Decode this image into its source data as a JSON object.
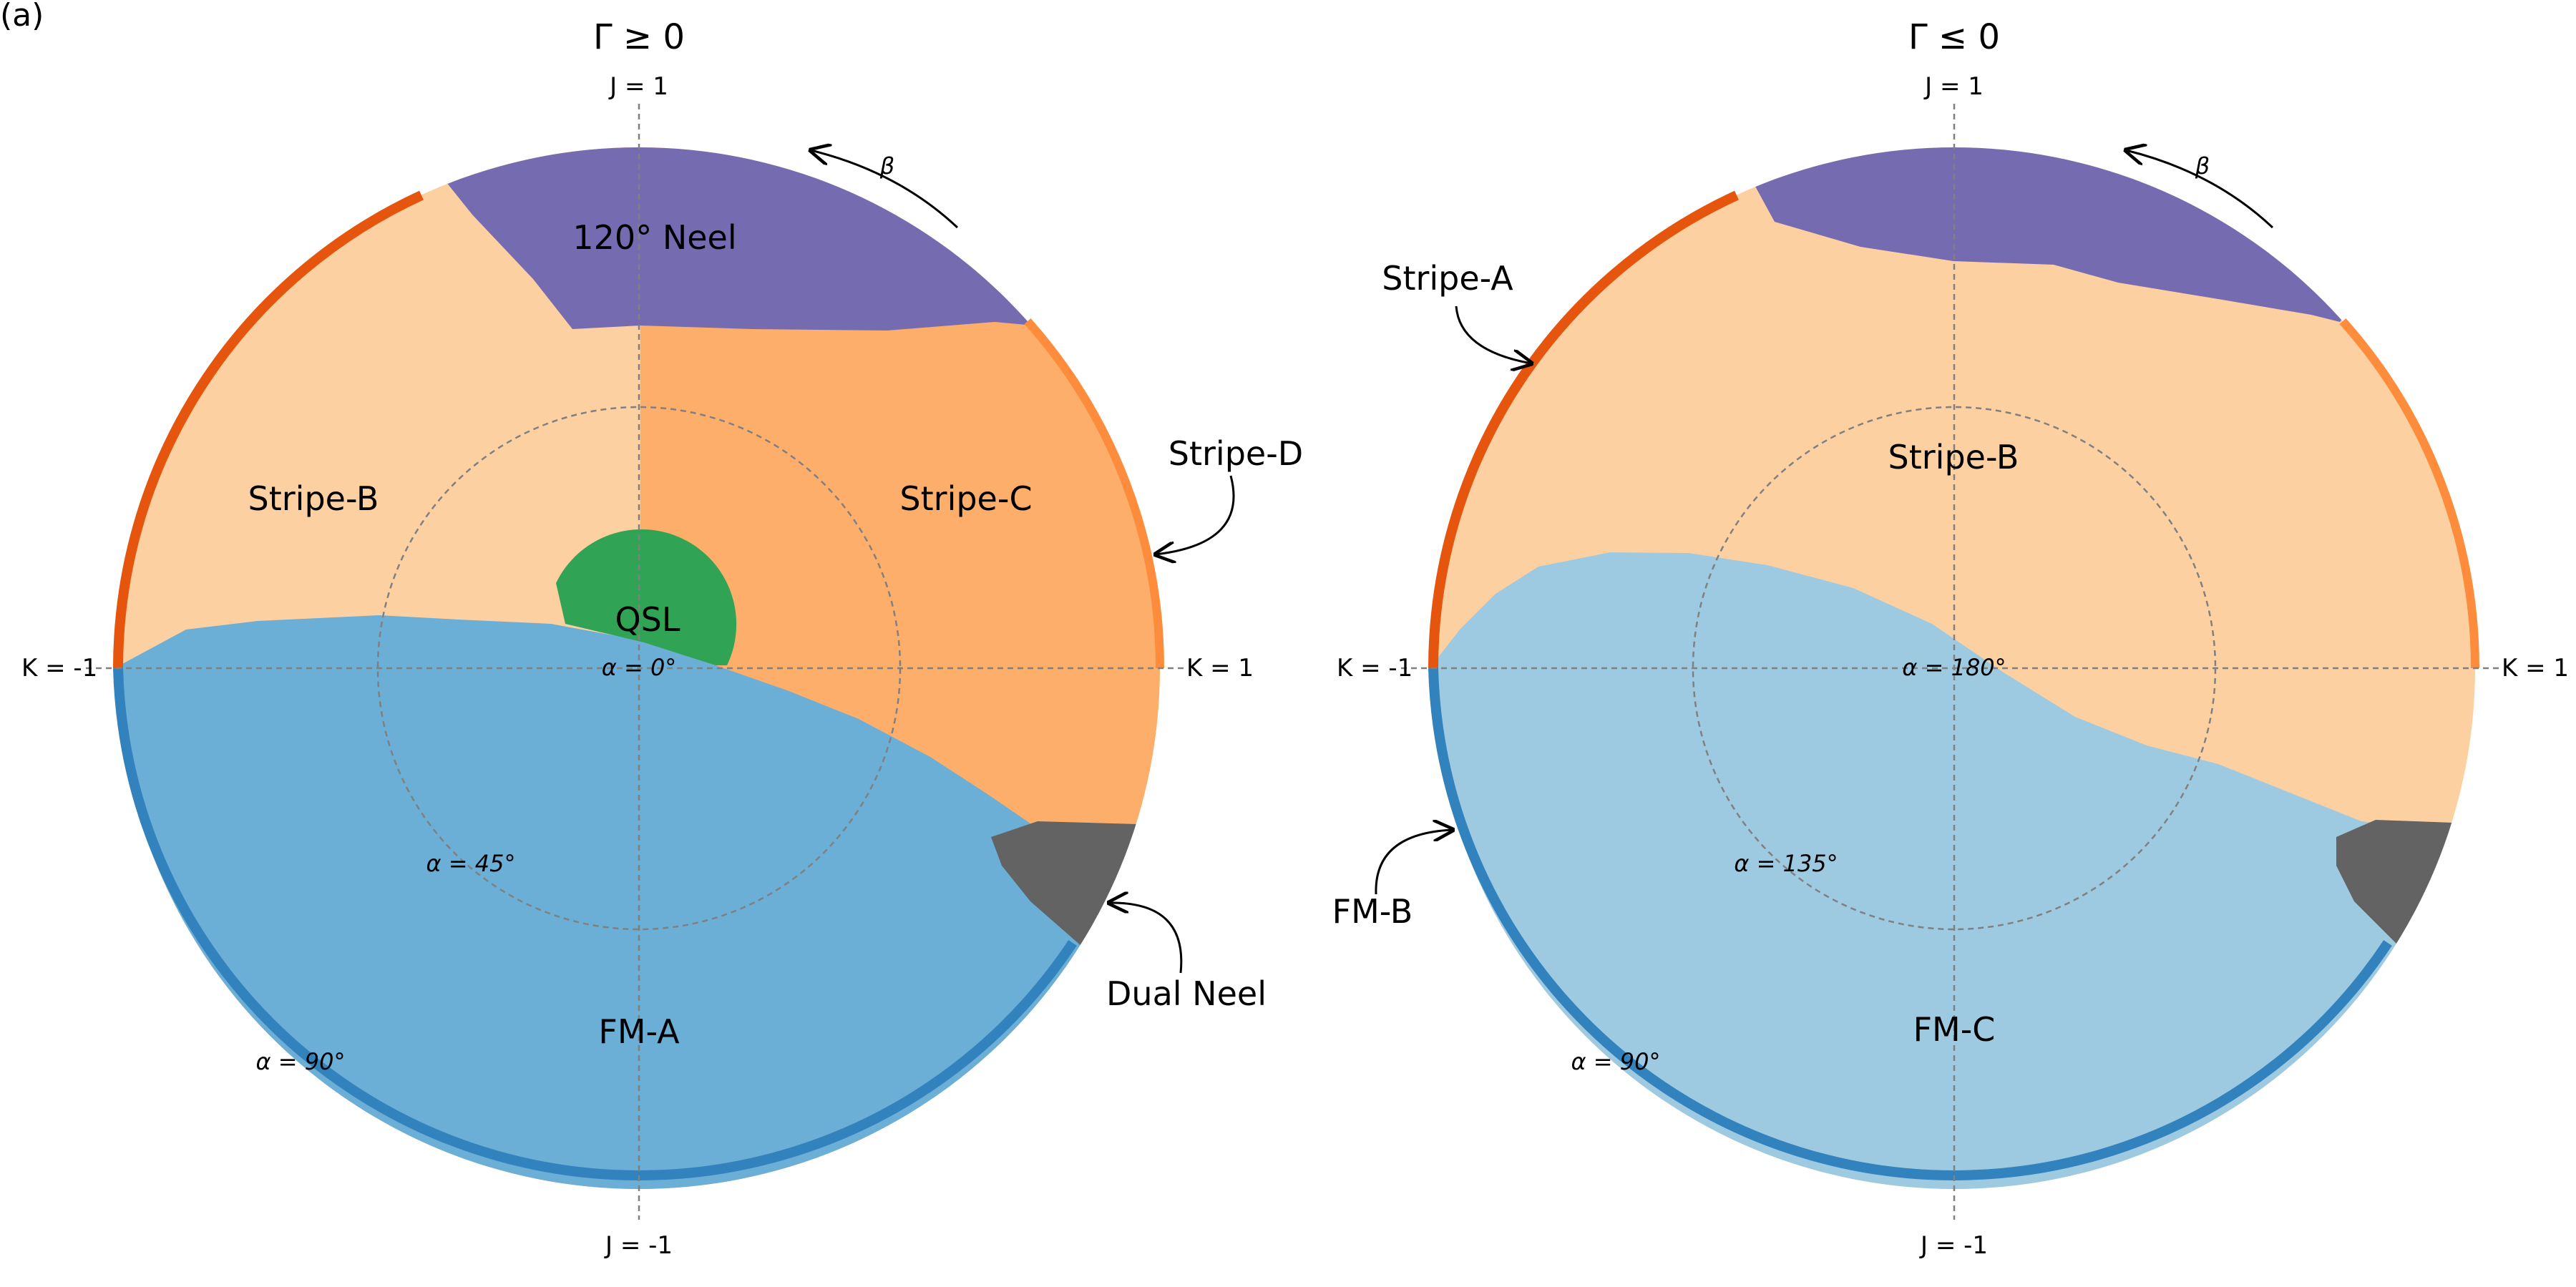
{
  "panel_label": "(a)",
  "left": {
    "title": "Γ ≥ 0",
    "axes": {
      "top": "J = 1",
      "bottom": "J = -1",
      "left": "K = -1",
      "right": "K = 1"
    },
    "alpha_center": "α = 0°",
    "alpha_inner": "α = 45°",
    "alpha_outer": "α = 90°",
    "beta": "β",
    "phases": {
      "neel120": "120°  Neel",
      "stripe_b": "Stripe-B",
      "stripe_c": "Stripe-C",
      "qsl": "QSL",
      "fm_a": "FM-A",
      "stripe_d": "Stripe-D",
      "dual_neel": "Dual Neel"
    },
    "colors": {
      "neel120": "#756bb1",
      "stripe_b": "#fdd0a2",
      "stripe_c": "#fdae6b",
      "qsl": "#31a354",
      "fm_a": "#6baed6",
      "dual_neel": "#636363",
      "rim_orange": "#e6550d",
      "rim_orange_light": "#fd8d3c",
      "rim_blue": "#3182bd"
    }
  },
  "right": {
    "title": "Γ ≤ 0",
    "axes": {
      "top": "J = 1",
      "bottom": "J = -1",
      "left": "K = -1",
      "right": "K = 1"
    },
    "alpha_center": "α = 180°",
    "alpha_inner": "α = 135°",
    "alpha_outer": "α = 90°",
    "beta": "β",
    "phases": {
      "stripe_a": "Stripe-A",
      "stripe_b": "Stripe-B",
      "fm_b": "FM-B",
      "fm_c": "FM-C"
    },
    "colors": {
      "neel120": "#756bb1",
      "stripe_b": "#fdd0a2",
      "fm_c": "#9ecae1",
      "dual_neel": "#636363",
      "rim_orange": "#e6550d",
      "rim_orange_light": "#fd8d3c",
      "rim_blue": "#3182bd"
    }
  }
}
